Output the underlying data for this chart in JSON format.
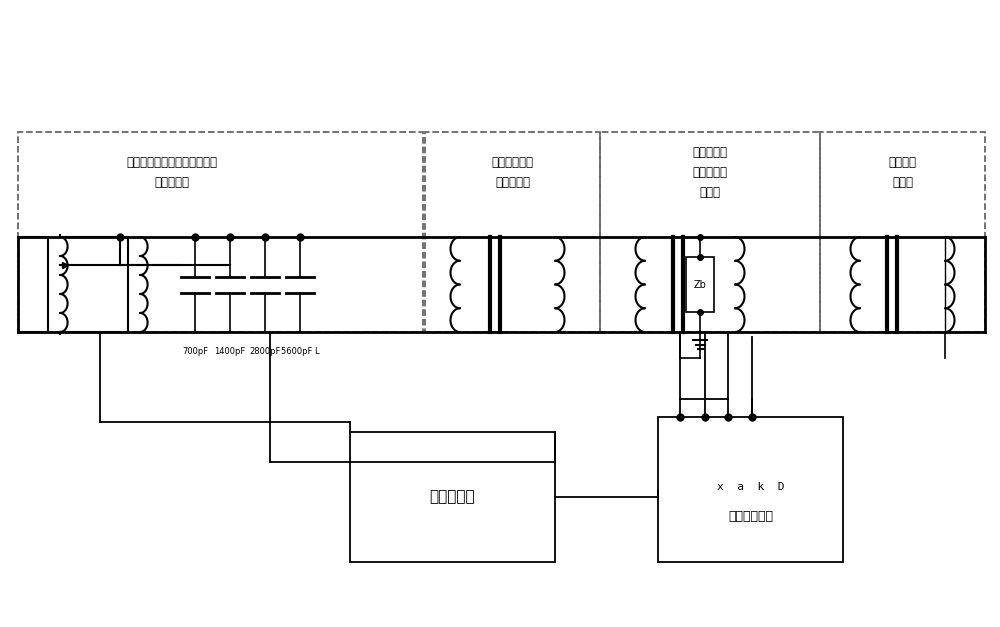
{
  "bg_color": "#ffffff",
  "line_color": "#000000",
  "dashed_color": "#666666",
  "fig_width": 10.0,
  "fig_height": 6.27,
  "box1_label_line1": "调压控制电源（内置多组合补",
  "box1_label_line2": "偿电抗器）",
  "box2_label_line1": "充气环氧桶式",
  "box2_label_line2": "试验升压器",
  "box3_label_line1": "充气环氧桶",
  "box3_label_line2": "式标准电压",
  "box3_label_line3": "互感器",
  "box4_label_line1": "被试电压",
  "box4_label_line2": "互感器",
  "cap_labels": [
    "700pF",
    "1400pF",
    "2800pF",
    "5600pF L"
  ],
  "controller_label": "远程控制器",
  "tester_label_line1": "x  a  k  D",
  "tester_label_line2": "互感器校验仪"
}
